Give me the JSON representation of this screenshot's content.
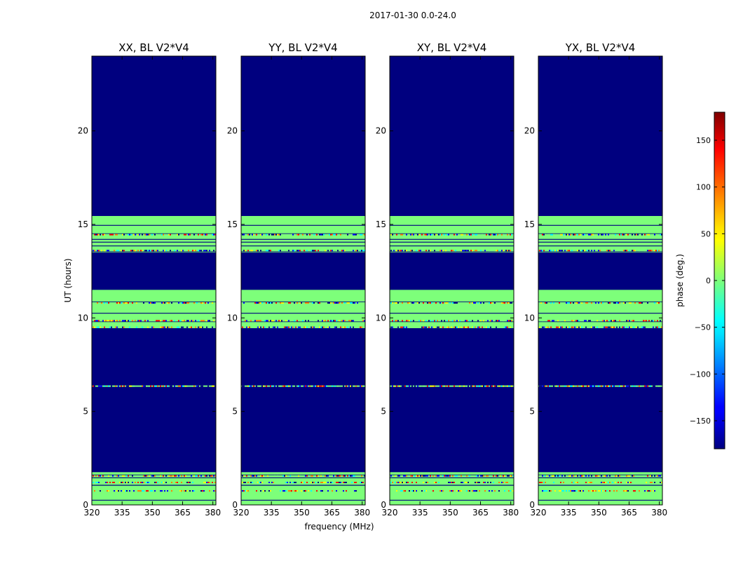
{
  "figure": {
    "suptitle": "2017-01-30 0.0-24.0",
    "xlabel": "frequency (MHz)",
    "ylabel": "UT (hours)"
  },
  "chart_data": {
    "type": "heatmap",
    "title": "2017-01-30 0.0-24.0",
    "xlabel": "frequency (MHz)",
    "ylabel": "UT (hours)",
    "xlim": [
      320,
      381.5
    ],
    "ylim": [
      0,
      24
    ],
    "x_ticks": [
      320,
      335,
      350,
      365,
      380
    ],
    "y_ticks": [
      0,
      5,
      10,
      15,
      20
    ],
    "colormap": "jet",
    "background_color": "#00007f",
    "panels": [
      {
        "title": "XX, BL V2*V4"
      },
      {
        "title": "YY, BL V2*V4"
      },
      {
        "title": "XY, BL V2*V4"
      },
      {
        "title": "YX, BL V2*V4"
      }
    ],
    "data_bands": [
      {
        "ut_start": 0.0,
        "ut_end": 1.75,
        "phase": 0
      },
      {
        "ut_start": 9.45,
        "ut_end": 11.5,
        "phase": 0
      },
      {
        "ut_start": 13.5,
        "ut_end": 15.45,
        "phase": 0
      }
    ],
    "gap_lines_ut": [
      0.25,
      1.05,
      1.45,
      1.6,
      9.8,
      10.25,
      10.85,
      13.55,
      13.85,
      14.05,
      14.2,
      14.5,
      14.95
    ],
    "noisy_rows_ut": [
      0.75,
      1.2,
      1.55,
      6.35,
      9.5,
      9.85,
      10.8,
      13.6,
      14.45
    ],
    "colorbar": {
      "label": "phase (deg.)",
      "range": [
        -180,
        180
      ],
      "ticks": [
        -150,
        -100,
        -50,
        0,
        50,
        100,
        150
      ],
      "tick_labels": [
        "−150",
        "−100",
        "−50",
        "0",
        "50",
        "100",
        "150"
      ]
    }
  }
}
